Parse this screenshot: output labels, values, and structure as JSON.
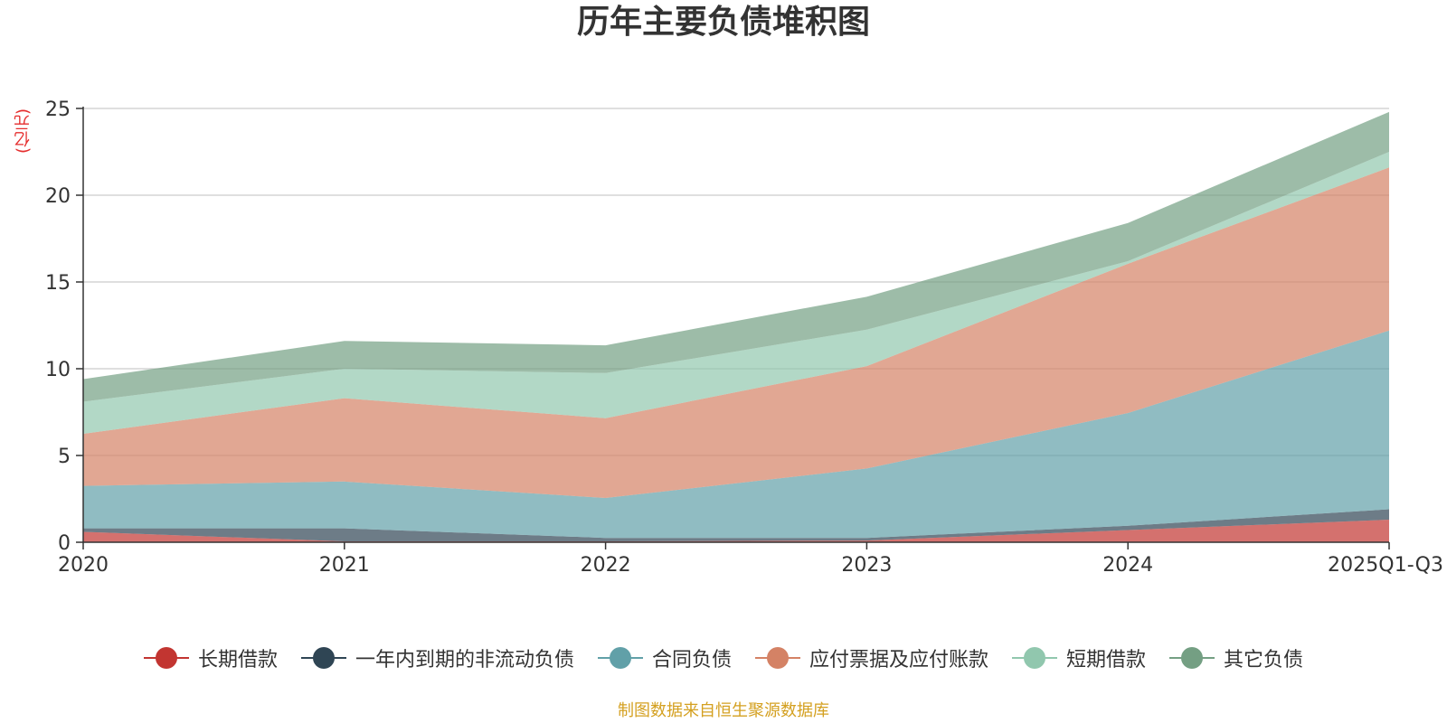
{
  "chart_data": {
    "type": "area",
    "stacked": true,
    "title": "历年主要负债堆积图",
    "ylabel": "(亿元)",
    "xlabel": "",
    "categories": [
      "2020",
      "2021",
      "2022",
      "2023",
      "2024",
      "2025Q1-Q3"
    ],
    "ylim": [
      0,
      25
    ],
    "yticks": [
      0,
      5,
      10,
      15,
      20,
      25
    ],
    "grid": true,
    "legend_position": "bottom",
    "series": [
      {
        "name": "长期借款",
        "color": "#c23531",
        "values": [
          0.6,
          0.05,
          0.05,
          0.1,
          0.7,
          1.3
        ]
      },
      {
        "name": "一年内到期的非流动负债",
        "color": "#2f4554",
        "values": [
          0.2,
          0.75,
          0.2,
          0.15,
          0.25,
          0.6
        ]
      },
      {
        "name": "合同负债",
        "color": "#61a0a8",
        "values": [
          2.45,
          2.7,
          2.3,
          4.0,
          6.5,
          10.3
        ]
      },
      {
        "name": "应付票据及应付账款",
        "color": "#d48265",
        "values": [
          3.0,
          4.8,
          4.6,
          5.9,
          8.6,
          9.4
        ]
      },
      {
        "name": "短期借款",
        "color": "#91c7ae",
        "values": [
          1.85,
          1.7,
          2.6,
          2.1,
          0.15,
          0.9
        ]
      },
      {
        "name": "其它负债",
        "color": "#749f83",
        "values": [
          1.3,
          1.6,
          1.6,
          1.9,
          2.2,
          2.3
        ]
      }
    ],
    "source": "制图数据来自恒生聚源数据库"
  }
}
